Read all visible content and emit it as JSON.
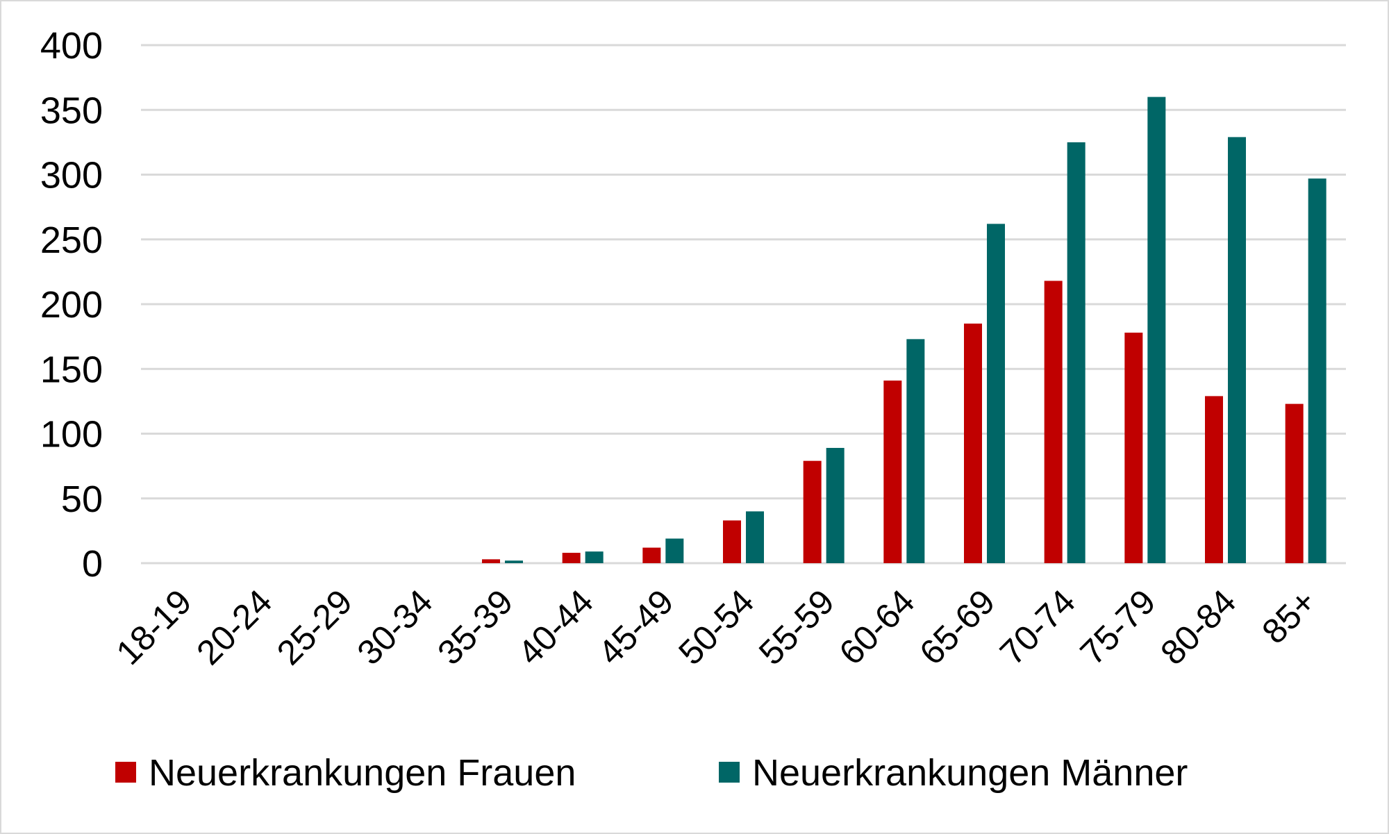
{
  "chart_data": {
    "type": "bar",
    "categories": [
      "18-19",
      "20-24",
      "25-29",
      "30-34",
      "35-39",
      "40-44",
      "45-49",
      "50-54",
      "55-59",
      "60-64",
      "65-69",
      "70-74",
      "75-79",
      "80-84",
      "85+"
    ],
    "series": [
      {
        "name": "Neuerkrankungen Frauen",
        "color": "#c00000",
        "values": [
          0,
          0,
          0,
          0,
          3,
          8,
          12,
          33,
          79,
          141,
          185,
          218,
          178,
          129,
          123
        ]
      },
      {
        "name": "Neuerkrankungen Männer",
        "color": "#006666",
        "values": [
          0,
          0,
          0,
          0,
          2,
          9,
          19,
          40,
          89,
          173,
          262,
          325,
          360,
          329,
          297
        ]
      }
    ],
    "ylim": [
      0,
      400
    ],
    "yticks": [
      0,
      50,
      100,
      150,
      200,
      250,
      300,
      350,
      400
    ],
    "grid": true,
    "legend": "bottom"
  }
}
